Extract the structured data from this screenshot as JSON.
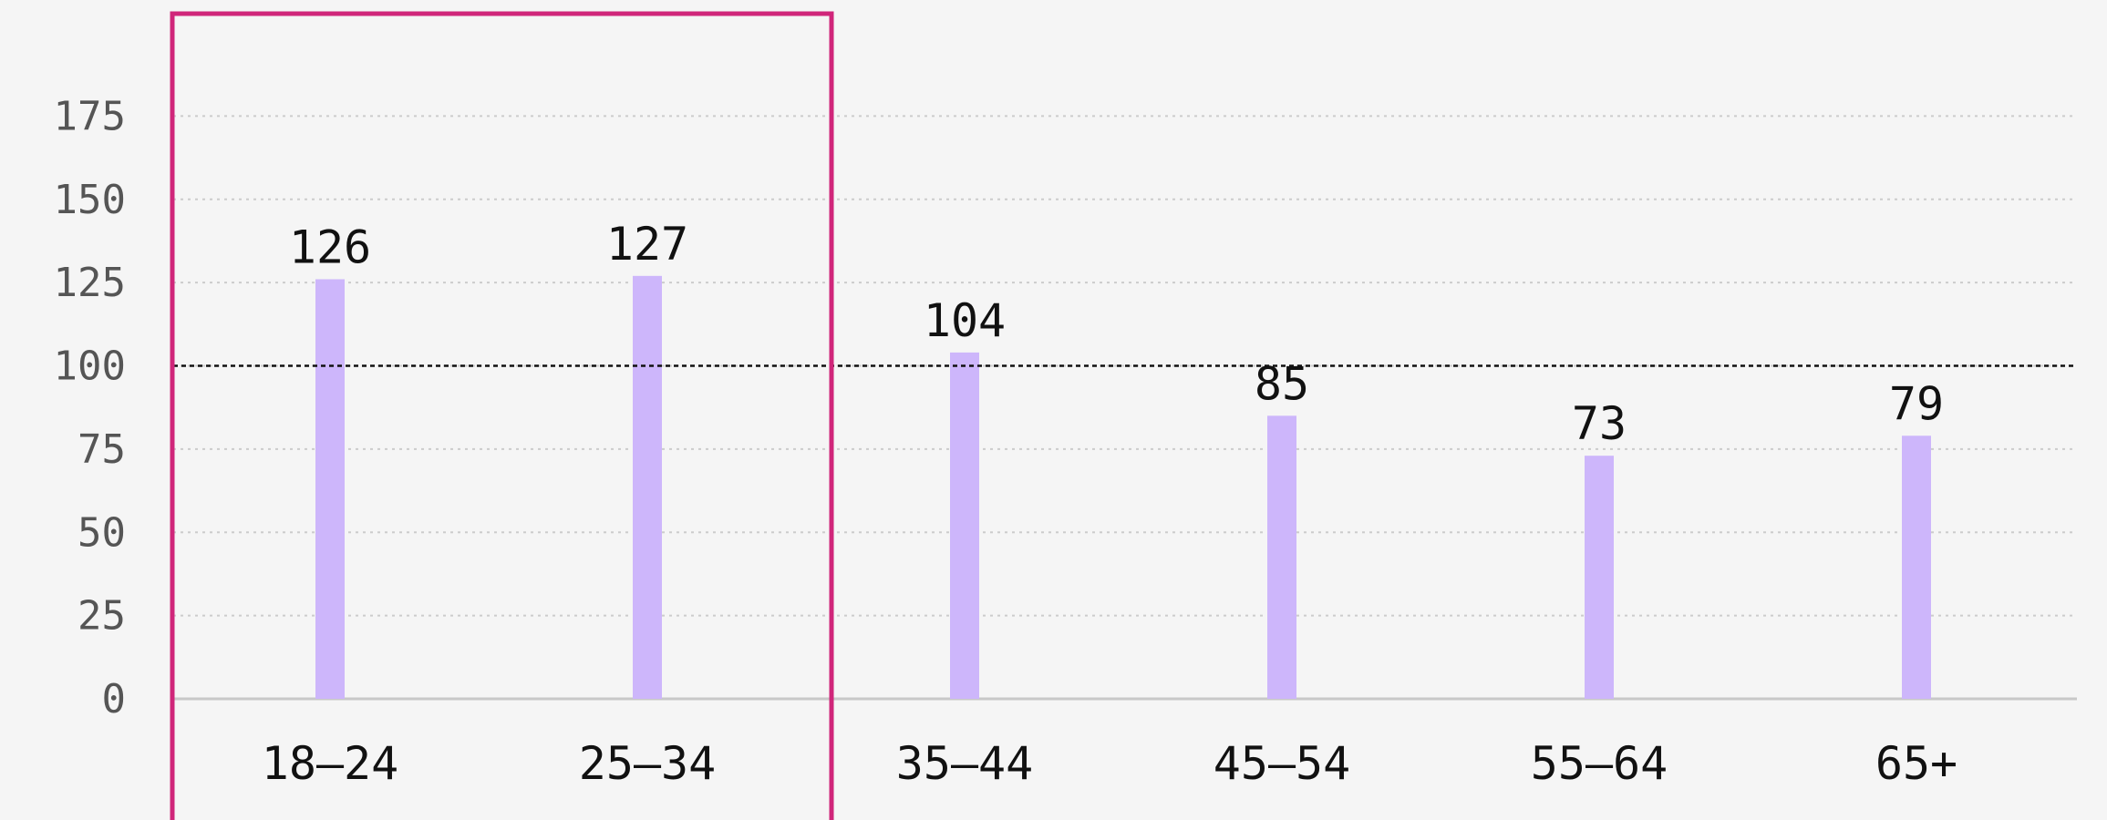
{
  "chart_data": {
    "type": "bar",
    "categories": [
      "18–24",
      "25–34",
      "35–44",
      "45–54",
      "55–64",
      "65+"
    ],
    "values": [
      126,
      127,
      104,
      85,
      73,
      79
    ],
    "value_labels": [
      "126",
      "127",
      "104",
      "85",
      "73",
      "79"
    ],
    "yticks": [
      0,
      25,
      50,
      75,
      100,
      125,
      150,
      175
    ],
    "ytick_labels": [
      "0",
      "25",
      "50",
      "75",
      "100",
      "125",
      "150",
      "175"
    ],
    "ylim": [
      0,
      190
    ],
    "reference_line": 100,
    "highlighted_categories": [
      "18–24",
      "25–34"
    ],
    "grid": true,
    "title": "",
    "xlabel": "",
    "ylabel": "",
    "colors": {
      "bar": "#cdb6fb",
      "highlight_box": "#d0267a",
      "grid": "#cccccc",
      "reference_line": "#111111",
      "axis": "#c8c8c8",
      "background": "#f5f5f5"
    }
  }
}
